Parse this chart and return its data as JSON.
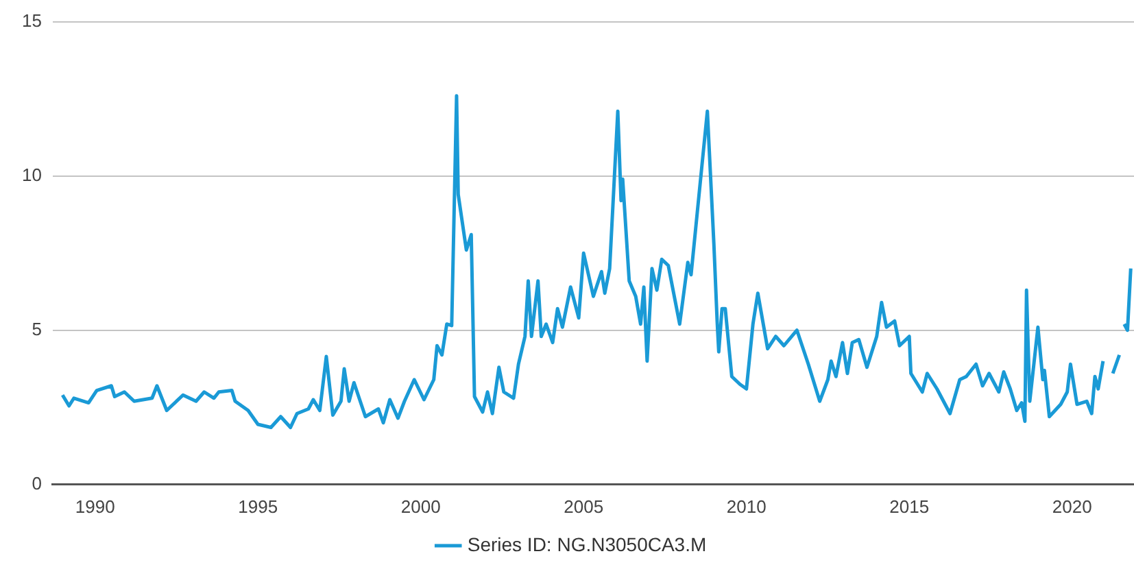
{
  "chart_data": {
    "type": "line",
    "xlim": [
      1988.7,
      2021.9
    ],
    "xticks": [
      1990,
      1995,
      2000,
      2005,
      2010,
      2015,
      2020
    ],
    "ylim": [
      0,
      15
    ],
    "yticks": [
      0,
      5,
      10,
      15
    ],
    "grid": "y",
    "legend": "bottom",
    "marker": "none",
    "line_style": "solid",
    "x": [
      1989.0,
      1989.2,
      1989.35,
      1989.8,
      1990.05,
      1990.5,
      1990.6,
      1990.9,
      1991.2,
      1991.75,
      1991.9,
      1992.2,
      1992.7,
      1993.1,
      1993.35,
      1993.65,
      1993.8,
      1994.2,
      1994.3,
      1994.7,
      1995.0,
      1995.4,
      1995.7,
      1996.0,
      1996.2,
      1996.55,
      1996.7,
      1996.9,
      1997.1,
      1997.3,
      1997.55,
      1997.65,
      1997.8,
      1997.95,
      1998.3,
      1998.7,
      1998.85,
      1999.05,
      1999.3,
      1999.5,
      1999.8,
      2000.1,
      2000.4,
      2000.5,
      2000.65,
      2000.8,
      2000.95,
      2001.1,
      2001.15,
      2001.4,
      2001.55,
      2001.65,
      2001.9,
      2002.05,
      2002.2,
      2002.4,
      2002.55,
      2002.85,
      2003.0,
      2003.2,
      2003.3,
      2003.4,
      2003.6,
      2003.7,
      2003.85,
      2004.05,
      2004.2,
      2004.35,
      2004.6,
      2004.85,
      2005.0,
      2005.3,
      2005.55,
      2005.65,
      2005.8,
      2006.05,
      2006.15,
      2006.2,
      2006.4,
      2006.6,
      2006.75,
      2006.85,
      2006.95,
      2007.1,
      2007.25,
      2007.4,
      2007.6,
      2007.95,
      2008.2,
      2008.3,
      2008.8,
      2009.0,
      2009.1,
      2009.15,
      2009.25,
      2009.35,
      2009.55,
      2009.8,
      2010.0,
      2010.2,
      2010.35,
      2010.65,
      2010.9,
      2011.15,
      2011.55,
      2011.9,
      2012.25,
      2012.5,
      2012.6,
      2012.75,
      2012.95,
      2013.1,
      2013.25,
      2013.45,
      2013.7,
      2014.0,
      2014.15,
      2014.3,
      2014.55,
      2014.7,
      2015.0,
      2015.05,
      2015.4,
      2015.55,
      2015.85,
      2016.25,
      2016.55,
      2016.75,
      2017.05,
      2017.25,
      2017.45,
      2017.75,
      2017.9,
      2018.1,
      2018.3,
      2018.45,
      2018.55,
      2018.6,
      2018.7,
      2018.95,
      2019.1,
      2019.15,
      2019.3,
      2019.65,
      2019.85,
      2019.95,
      2020.15,
      2020.45,
      2020.6,
      2020.7,
      2020.8,
      2020.95,
      2021.1,
      2021.25,
      2021.45,
      2021.52,
      2021.6,
      2021.7,
      2021.8
    ],
    "series": [
      {
        "name": "Series ID: NG.N3050CA3.M",
        "color": "#1a9ad6",
        "values": [
          2.9,
          2.55,
          2.8,
          2.65,
          3.05,
          3.2,
          2.85,
          3.0,
          2.7,
          2.8,
          3.2,
          2.4,
          2.9,
          2.7,
          3.0,
          2.8,
          3.0,
          3.05,
          2.7,
          2.4,
          1.95,
          1.85,
          2.2,
          1.85,
          2.3,
          2.45,
          2.75,
          2.4,
          4.15,
          2.25,
          2.7,
          3.75,
          2.7,
          3.3,
          2.2,
          2.45,
          2.0,
          2.75,
          2.15,
          2.7,
          3.4,
          2.75,
          3.4,
          4.5,
          4.2,
          5.2,
          5.15,
          12.6,
          9.4,
          7.6,
          8.1,
          2.85,
          2.35,
          3.0,
          2.3,
          3.8,
          3.0,
          2.8,
          3.9,
          4.8,
          6.6,
          4.8,
          6.6,
          4.8,
          5.2,
          4.6,
          5.7,
          5.1,
          6.4,
          5.4,
          7.5,
          6.1,
          6.9,
          6.2,
          7.0,
          12.1,
          9.2,
          9.9,
          6.6,
          6.1,
          5.2,
          6.4,
          4.0,
          7.0,
          6.3,
          7.3,
          7.1,
          5.2,
          7.2,
          6.8,
          12.1,
          7.8,
          5.3,
          4.3,
          5.7,
          5.7,
          3.5,
          3.25,
          3.1,
          5.2,
          6.2,
          4.4,
          4.8,
          4.5,
          5.0,
          3.9,
          2.7,
          3.4,
          4.0,
          3.5,
          4.6,
          3.6,
          4.6,
          4.7,
          3.8,
          4.8,
          5.9,
          5.1,
          5.3,
          4.5,
          4.8,
          3.6,
          3.0,
          3.6,
          3.1,
          2.3,
          3.4,
          3.5,
          3.9,
          3.2,
          3.6,
          3.0,
          3.65,
          3.1,
          2.4,
          2.65,
          2.05,
          6.3,
          2.7,
          5.1,
          3.4,
          3.7,
          2.2,
          2.6,
          3.0,
          3.9,
          2.6,
          2.7,
          2.3,
          3.5,
          3.1,
          4.0,
          null,
          3.6,
          4.2,
          null,
          5.2,
          5.0,
          7.0
        ]
      }
    ]
  }
}
